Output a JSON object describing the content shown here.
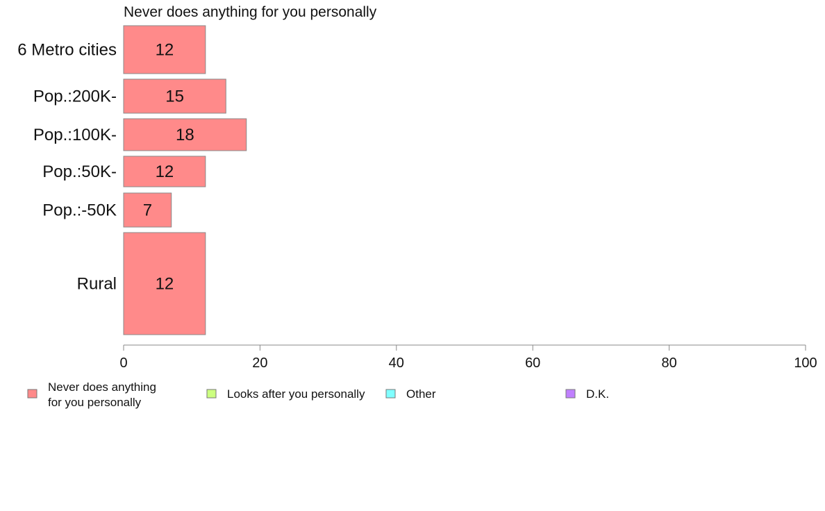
{
  "chart_data": {
    "type": "bar",
    "orientation": "horizontal",
    "title": "Never does anything for you personally",
    "categories": [
      "6 Metro cities",
      "Pop.:200K-",
      "Pop.:100K-",
      "Pop.:50K-",
      "Pop.:-50K",
      "Rural"
    ],
    "series": [
      {
        "name": "Never does anything for you personally",
        "values": [
          12,
          15,
          18,
          12,
          7,
          12
        ]
      }
    ],
    "xlim": [
      0,
      100
    ],
    "xticks": [
      0,
      20,
      40,
      60,
      80,
      100
    ],
    "grid": false,
    "legend": {
      "placement": "bottom",
      "entries": [
        {
          "lines": [
            "Never does anything",
            "for you personally"
          ],
          "color": "#ff8a8a"
        },
        {
          "lines": [
            "Looks after you personally"
          ],
          "color": "#ccff80"
        },
        {
          "lines": [
            "Other"
          ],
          "color": "#80ffff"
        },
        {
          "lines": [
            "D.K."
          ],
          "color": "#c080ff"
        }
      ]
    },
    "bar_color": "#ff8a8a",
    "bar_stroke": "#888888"
  }
}
